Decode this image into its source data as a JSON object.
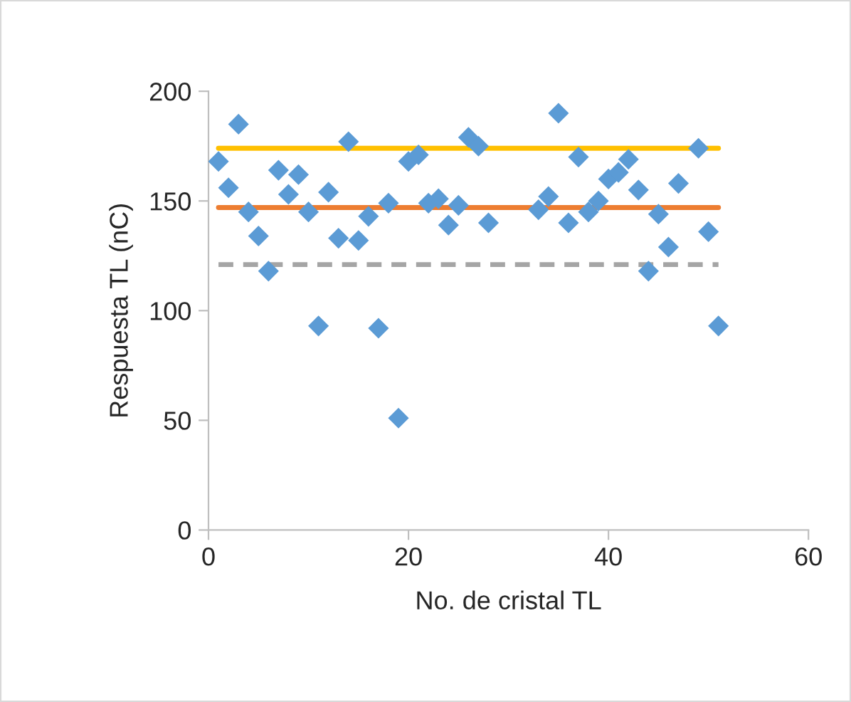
{
  "chart_data": {
    "type": "scatter",
    "xlabel": "No. de cristal TL",
    "ylabel": "Respuesta TL (nC)",
    "xlim": [
      0,
      60
    ],
    "xticks": [
      0,
      20,
      40,
      60
    ],
    "ylim": [
      0,
      200
    ],
    "yticks": [
      0,
      50,
      100,
      150,
      200
    ],
    "grid": false,
    "legend": false,
    "series": [
      {
        "marker": "diamond",
        "color": "#5b9bd5",
        "x": [
          1,
          2,
          3,
          4,
          5,
          6,
          7,
          8,
          9,
          10,
          11,
          12,
          13,
          14,
          15,
          16,
          17,
          18,
          19,
          20,
          21,
          22,
          23,
          24,
          25,
          26,
          27,
          28,
          33,
          34,
          35,
          36,
          37,
          38,
          39,
          40,
          41,
          42,
          43,
          44,
          45,
          46,
          47,
          49,
          50,
          51
        ],
        "values": [
          168,
          156,
          185,
          145,
          134,
          118,
          164,
          153,
          162,
          145,
          93,
          154,
          133,
          177,
          132,
          143,
          92,
          149,
          51,
          168,
          171,
          149,
          151,
          139,
          148,
          179,
          175,
          140,
          146,
          152,
          190,
          140,
          170,
          145,
          150,
          160,
          163,
          169,
          155,
          118,
          144,
          129,
          158,
          174,
          136,
          93
        ]
      },
      {
        "type": "line",
        "color": "#ffc000",
        "marker": "none",
        "line_style": "solid",
        "x": [
          1,
          51
        ],
        "values": [
          174,
          174
        ]
      },
      {
        "type": "line",
        "color": "#ed7d31",
        "marker": "none",
        "line_style": "solid",
        "x": [
          1,
          51
        ],
        "values": [
          147,
          147
        ]
      },
      {
        "type": "line",
        "color": "#a5a5a5",
        "marker": "none",
        "line_style": "dashed",
        "x": [
          1,
          51
        ],
        "values": [
          121,
          121
        ]
      }
    ]
  }
}
